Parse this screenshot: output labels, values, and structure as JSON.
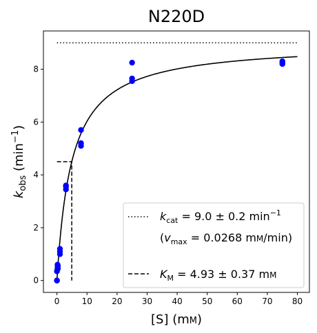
{
  "chart_data": {
    "type": "scatter",
    "title": "N220D",
    "xlabel": {
      "main": "[S] (m",
      "smallcaps": "M",
      "close": ")"
    },
    "ylabel": {
      "k": "k",
      "sub": "obs",
      "units": " (min",
      "sup": "−1",
      "close": ")"
    },
    "xlim": [
      -4.5,
      84
    ],
    "ylim": [
      -0.45,
      9.45
    ],
    "xticks": [
      0,
      10,
      20,
      30,
      40,
      50,
      60,
      70,
      80
    ],
    "yticks": [
      0,
      2,
      4,
      6,
      8
    ],
    "points": {
      "color": "#0000ff",
      "x": [
        0,
        0,
        0,
        0.1,
        0.2,
        0.2,
        0.3,
        0.3,
        1,
        1,
        1,
        3,
        3,
        3,
        8,
        8,
        8,
        25,
        25,
        25,
        75,
        75,
        75
      ],
      "y": [
        0.0,
        0.0,
        0.35,
        0.4,
        0.5,
        0.6,
        0.55,
        0.45,
        1.0,
        1.1,
        1.2,
        3.45,
        3.55,
        3.6,
        5.1,
        5.2,
        5.7,
        7.55,
        7.65,
        8.25,
        8.2,
        8.25,
        8.3
      ]
    },
    "fit": {
      "model": "michaelis-menten",
      "vmax": 9.0,
      "km": 4.93,
      "x_range": [
        0,
        80
      ],
      "color": "#000000"
    },
    "kcat_line": {
      "y": 9.0,
      "x_range": [
        0,
        80
      ],
      "style": "dotted"
    },
    "km_marker": {
      "x": 4.93,
      "y": 4.5,
      "x_start": 0,
      "style": "dashed"
    },
    "legend": {
      "placement": "lower-right",
      "kcat": {
        "k": "k",
        "sub": "cat",
        "text": " = 9.0 ± 0.2 min",
        "sup": "−1"
      },
      "vmax": {
        "open": "(",
        "v": "v",
        "sub": "max",
        "text": " = 0.0268 m",
        "smallcaps": "M",
        "tail": "/min)"
      },
      "km": {
        "k": "K",
        "sub": "M",
        "text": " = 4.93 ± 0.37 m",
        "smallcaps": "M"
      }
    }
  }
}
